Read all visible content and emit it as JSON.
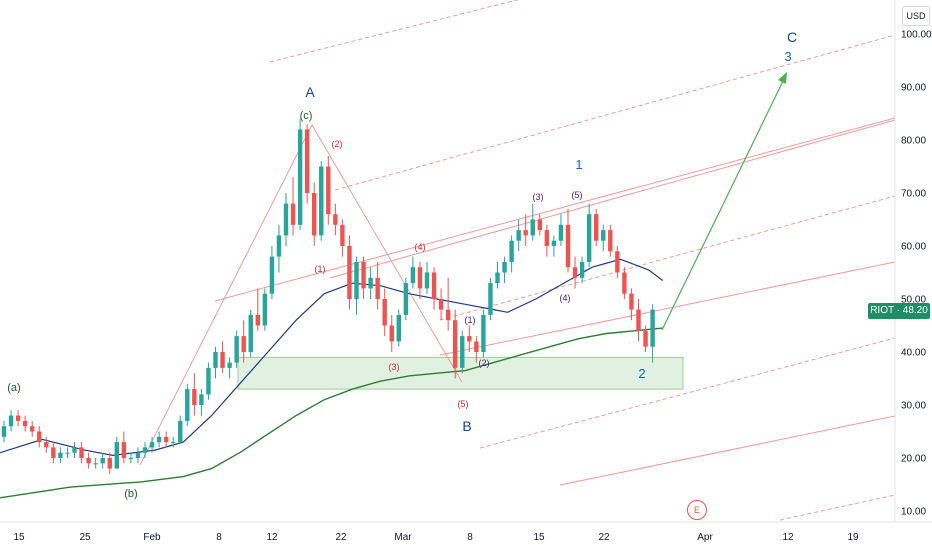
{
  "chart_data": {
    "type": "candlestick",
    "ticker": "RIOT",
    "currency": "USD",
    "last_price_label": "RIOT · 48.20",
    "last_price": 48.2,
    "ylim": [
      5,
      105
    ],
    "y_ticks": [
      "100.00",
      "90.00",
      "80.00",
      "70.00",
      "60.00",
      "50.00",
      "40.00",
      "30.00",
      "20.00",
      "10.00"
    ],
    "x_ticks": [
      "15",
      "25",
      "Feb",
      "8",
      "12",
      "22",
      "Mar",
      "8",
      "15",
      "22",
      "Apr",
      "12",
      "19"
    ],
    "candles": [
      [
        24,
        27,
        23,
        26
      ],
      [
        26,
        29,
        25,
        28
      ],
      [
        28,
        29,
        26,
        27
      ],
      [
        27,
        28,
        25,
        26
      ],
      [
        26,
        27,
        24,
        25
      ],
      [
        25,
        26,
        22,
        23
      ],
      [
        23,
        24,
        21,
        22
      ],
      [
        22,
        23,
        19,
        20
      ],
      [
        20,
        22,
        19,
        21
      ],
      [
        21,
        22,
        20,
        21
      ],
      [
        21,
        23,
        20,
        22
      ],
      [
        22,
        23,
        19,
        20
      ],
      [
        20,
        21,
        18,
        19
      ],
      [
        19,
        20,
        18,
        19
      ],
      [
        19,
        21,
        18,
        20
      ],
      [
        20,
        21,
        17,
        18
      ],
      [
        18,
        24,
        18,
        23
      ],
      [
        23,
        25,
        19,
        20
      ],
      [
        20,
        21,
        19,
        20
      ],
      [
        20,
        22,
        19,
        21
      ],
      [
        21,
        23,
        20,
        22
      ],
      [
        22,
        24,
        21,
        23
      ],
      [
        23,
        25,
        22,
        24
      ],
      [
        24,
        25,
        22,
        23
      ],
      [
        23,
        24,
        22,
        23
      ],
      [
        23,
        28,
        23,
        27
      ],
      [
        27,
        34,
        26,
        33
      ],
      [
        33,
        36,
        28,
        30
      ],
      [
        30,
        33,
        28,
        32
      ],
      [
        32,
        38,
        31,
        37
      ],
      [
        37,
        41,
        35,
        40
      ],
      [
        40,
        42,
        36,
        37
      ],
      [
        37,
        39,
        35,
        38
      ],
      [
        38,
        44,
        37,
        43
      ],
      [
        43,
        46,
        38,
        40
      ],
      [
        40,
        48,
        39,
        47
      ],
      [
        47,
        52,
        44,
        45
      ],
      [
        45,
        52,
        44,
        51
      ],
      [
        51,
        60,
        50,
        58
      ],
      [
        58,
        64,
        55,
        62
      ],
      [
        62,
        70,
        60,
        68
      ],
      [
        68,
        73,
        62,
        64
      ],
      [
        64,
        84,
        63,
        82
      ],
      [
        82,
        83,
        68,
        70
      ],
      [
        70,
        72,
        60,
        62
      ],
      [
        62,
        76,
        61,
        75
      ],
      [
        75,
        77,
        64,
        66
      ],
      [
        66,
        68,
        62,
        64
      ],
      [
        64,
        65,
        58,
        60
      ],
      [
        60,
        62,
        48,
        50
      ],
      [
        50,
        58,
        47,
        57
      ],
      [
        57,
        58,
        50,
        52
      ],
      [
        52,
        56,
        50,
        54
      ],
      [
        54,
        57,
        48,
        50
      ],
      [
        50,
        52,
        43,
        45
      ],
      [
        45,
        47,
        40,
        42
      ],
      [
        42,
        48,
        41,
        47
      ],
      [
        47,
        54,
        46,
        53
      ],
      [
        53,
        58,
        52,
        56
      ],
      [
        56,
        57,
        50,
        52
      ],
      [
        52,
        57,
        51,
        55
      ],
      [
        55,
        56,
        48,
        50
      ],
      [
        50,
        52,
        46,
        48
      ],
      [
        48,
        54,
        44,
        46
      ],
      [
        46,
        48,
        35,
        37
      ],
      [
        37,
        44,
        36,
        43
      ],
      [
        43,
        45,
        40,
        42
      ],
      [
        42,
        43,
        38,
        40
      ],
      [
        40,
        48,
        39,
        47
      ],
      [
        47,
        54,
        46,
        53
      ],
      [
        53,
        57,
        52,
        55
      ],
      [
        55,
        58,
        53,
        57
      ],
      [
        57,
        62,
        55,
        61
      ],
      [
        61,
        65,
        59,
        63
      ],
      [
        63,
        66,
        60,
        62
      ],
      [
        62,
        68,
        61,
        65
      ],
      [
        65,
        66,
        62,
        63
      ],
      [
        63,
        64,
        58,
        60
      ],
      [
        60,
        62,
        58,
        61
      ],
      [
        61,
        66,
        60,
        64
      ],
      [
        64,
        67,
        55,
        56
      ],
      [
        56,
        58,
        52,
        54
      ],
      [
        54,
        58,
        53,
        57
      ],
      [
        57,
        68,
        56,
        66
      ],
      [
        66,
        67,
        60,
        61
      ],
      [
        61,
        64,
        59,
        63
      ],
      [
        63,
        64,
        58,
        59
      ],
      [
        59,
        60,
        54,
        55
      ],
      [
        55,
        56,
        50,
        51
      ],
      [
        51,
        52,
        46,
        48
      ],
      [
        48,
        50,
        42,
        44
      ],
      [
        44,
        45,
        40,
        41
      ],
      [
        41,
        49,
        38,
        48
      ]
    ],
    "ema_fast": [
      [
        0,
        21
      ],
      [
        6,
        23.5
      ],
      [
        12,
        21.5
      ],
      [
        16,
        20.5
      ],
      [
        22,
        21.5
      ],
      [
        26,
        23
      ],
      [
        30,
        28
      ],
      [
        34,
        34
      ],
      [
        38,
        40
      ],
      [
        42,
        46
      ],
      [
        46,
        51
      ],
      [
        50,
        53
      ],
      [
        54,
        52.5
      ],
      [
        58,
        51
      ],
      [
        62,
        50
      ],
      [
        66,
        49
      ],
      [
        70,
        48
      ],
      [
        72,
        47.5
      ],
      [
        76,
        50
      ],
      [
        80,
        53
      ],
      [
        84,
        56
      ],
      [
        88,
        57.5
      ],
      [
        92,
        55.5
      ],
      [
        94,
        53.5
      ]
    ],
    "ema_slow": [
      [
        0,
        12.5
      ],
      [
        10,
        14.5
      ],
      [
        20,
        15.5
      ],
      [
        26,
        16.5
      ],
      [
        30,
        18
      ],
      [
        34,
        21
      ],
      [
        38,
        24.5
      ],
      [
        42,
        28
      ],
      [
        46,
        31
      ],
      [
        50,
        33
      ],
      [
        54,
        34.5
      ],
      [
        58,
        35.5
      ],
      [
        62,
        36
      ],
      [
        66,
        36.5
      ],
      [
        70,
        38
      ],
      [
        74,
        39.5
      ],
      [
        78,
        41
      ],
      [
        82,
        42.5
      ],
      [
        86,
        43.5
      ],
      [
        90,
        44
      ],
      [
        94,
        44.5
      ]
    ],
    "wave_labels": {
      "a_lower": "(a)",
      "b_lower": "(b)",
      "c_lower": "(c)",
      "A": "A",
      "B": "B",
      "C": "C",
      "one": "1",
      "two": "2",
      "three": "3",
      "r1": "(1)",
      "r2": "(2)",
      "r3": "(3)",
      "r4": "(4)",
      "r5": "(5)",
      "p1": "(1)",
      "p2": "(2)",
      "p3": "(3)",
      "p4": "(4)",
      "p5": "(5)"
    },
    "support_zone": [
      33,
      39
    ],
    "colors": {
      "up": "#26a69a",
      "down": "#ef5350",
      "ema_fast": "#1e3a8a",
      "ema_slow": "#2e7d32",
      "projection": "#4caf50",
      "pitchfork": "#ef9a9a",
      "zone": "#c8e6c9"
    }
  },
  "ui": {
    "currency_button": "USD",
    "event_badge": "E"
  }
}
